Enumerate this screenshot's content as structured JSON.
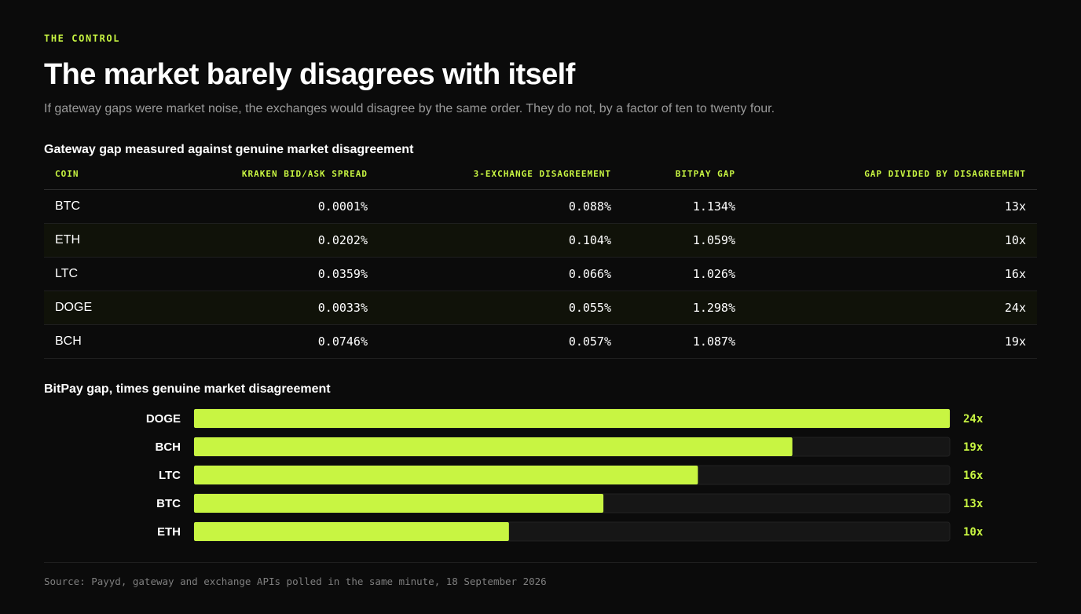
{
  "eyebrow": "THE CONTROL",
  "title": "The market barely disagrees with itself",
  "subtitle": "If gateway gaps were market noise, the exchanges would disagree by the same order. They do not, by a factor of ten to twenty four.",
  "table": {
    "title": "Gateway gap measured against genuine market disagreement",
    "columns": [
      "COIN",
      "KRAKEN BID/ASK SPREAD",
      "3-EXCHANGE DISAGREEMENT",
      "BITPAY GAP",
      "GAP DIVIDED BY DISAGREEMENT"
    ],
    "rows": [
      [
        "BTC",
        "0.0001%",
        "0.088%",
        "1.134%",
        "13x"
      ],
      [
        "ETH",
        "0.0202%",
        "0.104%",
        "1.059%",
        "10x"
      ],
      [
        "LTC",
        "0.0359%",
        "0.066%",
        "1.026%",
        "16x"
      ],
      [
        "DOGE",
        "0.0033%",
        "0.055%",
        "1.298%",
        "24x"
      ],
      [
        "BCH",
        "0.0746%",
        "0.057%",
        "1.087%",
        "19x"
      ]
    ]
  },
  "chart_title": "BitPay gap, times genuine market disagreement",
  "source": "Source: Payyd, gateway and exchange APIs polled in the same minute, 18 September 2026",
  "colors": {
    "accent": "#c8f542",
    "track": "#161616",
    "background": "#0b0b0b",
    "muted": "#9a9a9a"
  },
  "chart_data": {
    "type": "bar",
    "orientation": "horizontal",
    "title": "BitPay gap, times genuine market disagreement",
    "categories": [
      "DOGE",
      "BCH",
      "LTC",
      "BTC",
      "ETH"
    ],
    "values": [
      24,
      19,
      16,
      13,
      10
    ],
    "value_labels": [
      "24x",
      "19x",
      "16x",
      "13x",
      "10x"
    ],
    "xlim": [
      0,
      24
    ],
    "grid": false
  }
}
